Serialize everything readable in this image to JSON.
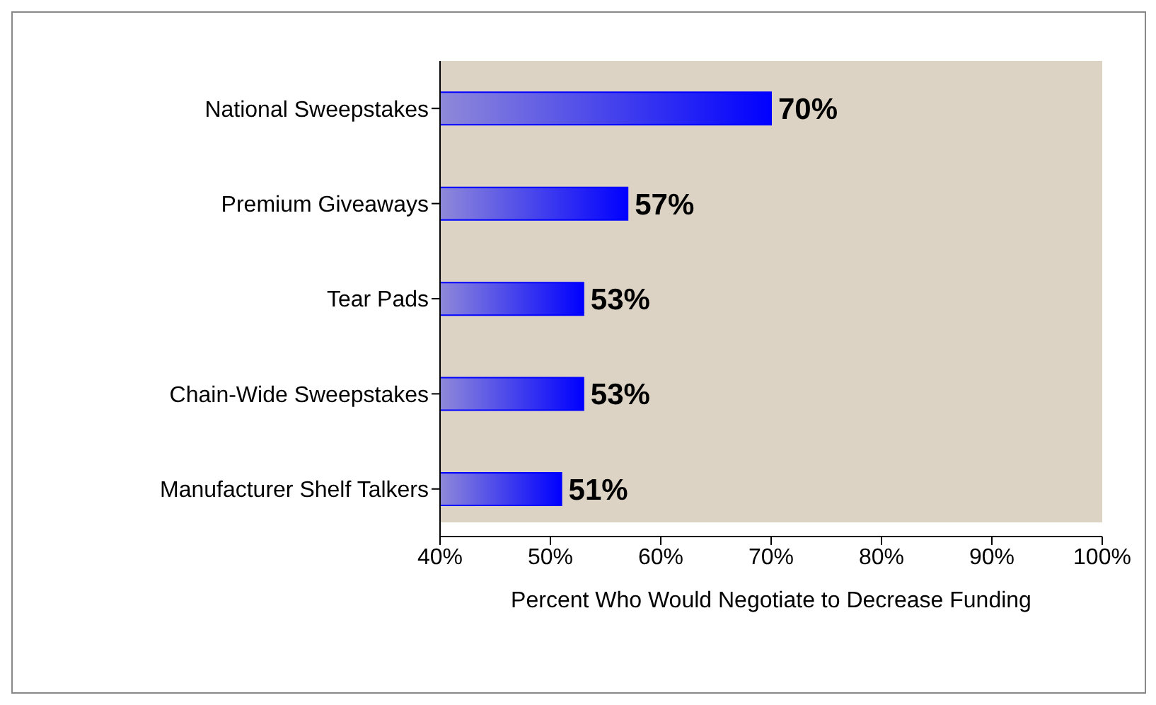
{
  "chart_data": {
    "type": "bar",
    "orientation": "horizontal",
    "xlabel": "Percent Who Would Negotiate to Decrease Funding",
    "categories": [
      "National Sweepstakes",
      "Premium Giveaways",
      "Tear Pads",
      "Chain-Wide Sweepstakes",
      "Manufacturer Shelf Talkers"
    ],
    "values": [
      70,
      57,
      53,
      53,
      51
    ],
    "value_labels": [
      "70%",
      "57%",
      "53%",
      "53%",
      "51%"
    ],
    "color": "#0000ff",
    "xlim": [
      40,
      100
    ],
    "xticks": [
      {
        "value": 40,
        "label": "40%"
      },
      {
        "value": 50,
        "label": "50%"
      },
      {
        "value": 60,
        "label": "60%"
      },
      {
        "value": 70,
        "label": "70%"
      },
      {
        "value": 80,
        "label": "80%"
      },
      {
        "value": 90,
        "label": "90%"
      },
      {
        "value": 100,
        "label": "100%"
      }
    ],
    "grid": false,
    "legend": false
  }
}
